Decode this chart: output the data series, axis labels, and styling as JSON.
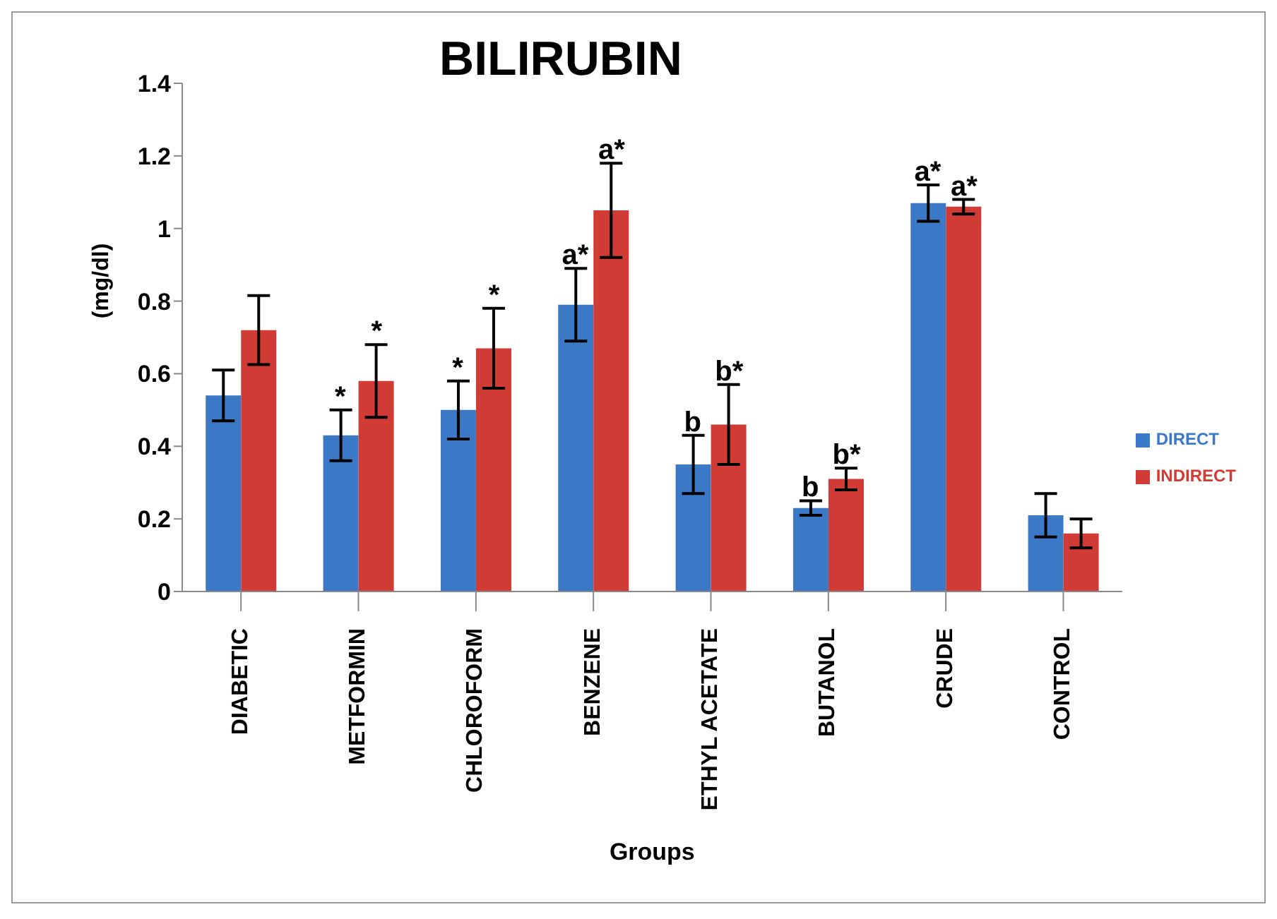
{
  "chart_data": {
    "type": "bar",
    "title": "BILIRUBIN",
    "xlabel": "Groups",
    "ylabel": "(mg/dl)",
    "categories": [
      "DIABETIC",
      "METFORMIN",
      "CHLOROFORM",
      "BENZENE",
      "ETHYL ACETATE",
      "BUTANOL",
      "CRUDE",
      "CONTROL"
    ],
    "series": [
      {
        "name": "DIRECT",
        "color": "#3b78c6",
        "values": [
          0.54,
          0.43,
          0.5,
          0.79,
          0.35,
          0.23,
          1.07,
          0.21
        ],
        "errors": [
          0.07,
          0.07,
          0.08,
          0.1,
          0.08,
          0.02,
          0.05,
          0.06
        ]
      },
      {
        "name": "INDIRECT",
        "color": "#d13b36",
        "values": [
          0.72,
          0.58,
          0.67,
          1.05,
          0.46,
          0.31,
          1.06,
          0.16
        ],
        "errors": [
          0.095,
          0.1,
          0.11,
          0.13,
          0.11,
          0.03,
          0.02,
          0.04
        ]
      }
    ],
    "ylim": [
      0,
      1.4
    ],
    "yticks": [
      0,
      0.2,
      0.4,
      0.6,
      0.8,
      1,
      1.2,
      1.4
    ],
    "grid": false,
    "legend": "right",
    "annotations": [
      {
        "text": "*",
        "x": "METFORMIN",
        "y": 0.5
      },
      {
        "text": "*",
        "x": "METFORMIN",
        "y": 0.68
      },
      {
        "text": "*",
        "x": "CHLOROFORM",
        "y": 0.58
      },
      {
        "text": "*",
        "x": "CHLOROFORM",
        "y": 0.78
      },
      {
        "text": "a*",
        "x": "BENZENE",
        "y": 0.89
      },
      {
        "text": "a*",
        "x": "BENZENE",
        "y": 1.18
      },
      {
        "text": "b",
        "x": "ETHYL ACETATE",
        "y": 0.43
      },
      {
        "text": "b*",
        "x": "ETHYL ACETATE",
        "y": 0.57
      },
      {
        "text": "b",
        "x": "BUTANOL",
        "y": 0.25
      },
      {
        "text": "b*",
        "x": "BUTANOL",
        "y": 0.34
      },
      {
        "text": "a*",
        "x": "CRUDE",
        "y": 1.12
      },
      {
        "text": "a*",
        "x": "CRUDE",
        "y": 1.08
      }
    ]
  }
}
